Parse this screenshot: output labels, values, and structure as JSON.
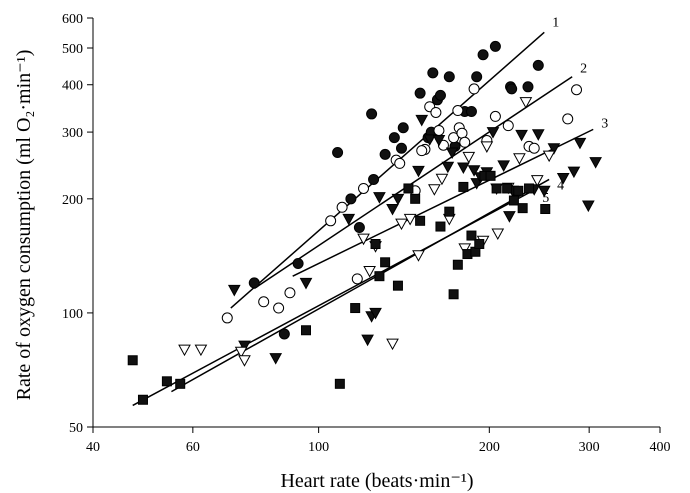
{
  "chart_data": {
    "type": "scatter",
    "x_scale": "log",
    "y_scale": "log",
    "xlim": [
      40,
      400
    ],
    "ylim": [
      50,
      600
    ],
    "xlabel": "Heart rate (beats·min⁻¹)",
    "ylabel": "Rate of oxygen consumption (ml O₂·min⁻¹)",
    "x_ticks": [
      40,
      60,
      100,
      200,
      300,
      400
    ],
    "y_ticks": [
      50,
      100,
      200,
      300,
      400,
      500,
      600
    ],
    "grid": false,
    "legend": "none",
    "marker_styles": {
      "filled-circle": {
        "shape": "circle",
        "fill": "#111111"
      },
      "open-circle": {
        "shape": "circle",
        "fill": "#ffffff"
      },
      "filled-down-triangle": {
        "shape": "triangle-down",
        "fill": "#111111"
      },
      "open-down-triangle": {
        "shape": "triangle-down",
        "fill": "#ffffff"
      },
      "filled-square": {
        "shape": "square",
        "fill": "#111111"
      }
    },
    "series": [
      {
        "marker": "filled-circle",
        "points": [
          [
            77,
            120
          ],
          [
            92,
            135
          ],
          [
            108,
            265
          ],
          [
            114,
            200
          ],
          [
            118,
            168
          ],
          [
            124,
            335
          ],
          [
            125,
            225
          ],
          [
            131,
            262
          ],
          [
            136,
            290
          ],
          [
            140,
            272
          ],
          [
            141,
            308
          ],
          [
            151,
            380
          ],
          [
            156,
            290
          ],
          [
            159,
            430
          ],
          [
            158,
            300
          ],
          [
            162,
            365
          ],
          [
            164,
            375
          ],
          [
            170,
            420
          ],
          [
            174,
            275
          ],
          [
            181,
            340
          ],
          [
            186,
            340
          ],
          [
            190,
            420
          ],
          [
            195,
            480
          ],
          [
            205,
            505
          ],
          [
            218,
            395
          ],
          [
            219,
            390
          ],
          [
            234,
            395
          ],
          [
            244,
            450
          ],
          [
            87,
            88
          ]
        ]
      },
      {
        "marker": "open-circle",
        "points": [
          [
            69,
            97
          ],
          [
            80,
            107
          ],
          [
            85,
            103
          ],
          [
            89,
            113
          ],
          [
            105,
            175
          ],
          [
            110,
            190
          ],
          [
            117,
            123
          ],
          [
            120,
            213
          ],
          [
            137,
            253
          ],
          [
            139,
            248
          ],
          [
            148,
            210
          ],
          [
            154,
            270
          ],
          [
            157,
            350
          ],
          [
            161,
            338
          ],
          [
            163,
            303
          ],
          [
            166,
            277
          ],
          [
            173,
            290
          ],
          [
            176,
            342
          ],
          [
            177,
            308
          ],
          [
            179,
            298
          ],
          [
            181,
            282
          ],
          [
            188,
            390
          ],
          [
            198,
            285
          ],
          [
            205,
            330
          ],
          [
            216,
            312
          ],
          [
            235,
            275
          ],
          [
            240,
            272
          ],
          [
            275,
            325
          ],
          [
            285,
            388
          ],
          [
            152,
            268
          ]
        ]
      },
      {
        "marker": "filled-down-triangle",
        "points": [
          [
            71,
            115
          ],
          [
            74,
            82
          ],
          [
            84,
            76
          ],
          [
            95,
            120
          ],
          [
            113,
            177
          ],
          [
            122,
            85
          ],
          [
            124,
            98
          ],
          [
            126,
            100
          ],
          [
            128,
            202
          ],
          [
            135,
            188
          ],
          [
            138,
            200
          ],
          [
            150,
            237
          ],
          [
            152,
            323
          ],
          [
            157,
            287
          ],
          [
            163,
            286
          ],
          [
            169,
            243
          ],
          [
            172,
            265
          ],
          [
            188,
            238
          ],
          [
            190,
            220
          ],
          [
            193,
            228
          ],
          [
            198,
            235
          ],
          [
            203,
            300
          ],
          [
            206,
            213
          ],
          [
            212,
            245
          ],
          [
            217,
            180
          ],
          [
            220,
            210
          ],
          [
            228,
            295
          ],
          [
            240,
            212
          ],
          [
            244,
            296
          ],
          [
            250,
            210
          ],
          [
            260,
            272
          ],
          [
            270,
            227
          ],
          [
            282,
            236
          ],
          [
            289,
            281
          ],
          [
            299,
            192
          ],
          [
            308,
            250
          ],
          [
            180,
            242
          ]
        ]
      },
      {
        "marker": "open-down-triangle",
        "points": [
          [
            58,
            80
          ],
          [
            62,
            80
          ],
          [
            73,
            79
          ],
          [
            74,
            75
          ],
          [
            120,
            157
          ],
          [
            123,
            129
          ],
          [
            135,
            83
          ],
          [
            140,
            172
          ],
          [
            145,
            177
          ],
          [
            150,
            142
          ],
          [
            160,
            212
          ],
          [
            165,
            226
          ],
          [
            181,
            148
          ],
          [
            184,
            258
          ],
          [
            195,
            155
          ],
          [
            198,
            275
          ],
          [
            207,
            162
          ],
          [
            216,
            214
          ],
          [
            226,
            256
          ],
          [
            232,
            360
          ],
          [
            243,
            224
          ],
          [
            255,
            260
          ],
          [
            126,
            150
          ],
          [
            170,
            177
          ]
        ]
      },
      {
        "marker": "filled-square",
        "points": [
          [
            47,
            75
          ],
          [
            49,
            59
          ],
          [
            54,
            66
          ],
          [
            57,
            65
          ],
          [
            95,
            90
          ],
          [
            109,
            65
          ],
          [
            116,
            103
          ],
          [
            126,
            152
          ],
          [
            128,
            125
          ],
          [
            131,
            136
          ],
          [
            138,
            118
          ],
          [
            144,
            213
          ],
          [
            148,
            200
          ],
          [
            151,
            175
          ],
          [
            164,
            169
          ],
          [
            170,
            185
          ],
          [
            173,
            112
          ],
          [
            176,
            134
          ],
          [
            180,
            215
          ],
          [
            183,
            143
          ],
          [
            186,
            160
          ],
          [
            189,
            145
          ],
          [
            192,
            152
          ],
          [
            196,
            230
          ],
          [
            201,
            230
          ],
          [
            206,
            213
          ],
          [
            215,
            213
          ],
          [
            221,
            198
          ],
          [
            225,
            210
          ],
          [
            229,
            189
          ],
          [
            235,
            213
          ],
          [
            251,
            188
          ]
        ]
      }
    ],
    "fit_lines": [
      {
        "label": "1",
        "x": [
          70,
          250
        ],
        "y": [
          103,
          550
        ]
      },
      {
        "label": "2",
        "x": [
          77,
          280
        ],
        "y": [
          116,
          420
        ]
      },
      {
        "label": "3",
        "x": [
          90,
          305
        ],
        "y": [
          125,
          305
        ]
      },
      {
        "label": "4",
        "x": [
          55,
          255
        ],
        "y": [
          62,
          225
        ]
      },
      {
        "label": "5",
        "x": [
          47,
          240
        ],
        "y": [
          57,
          211
        ]
      }
    ]
  }
}
